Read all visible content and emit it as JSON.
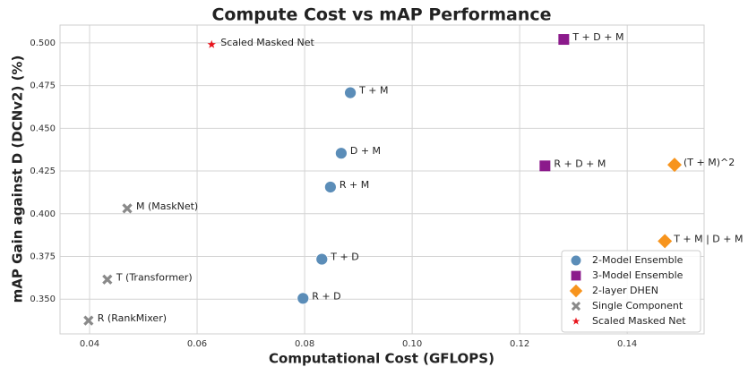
{
  "chart_data": {
    "type": "scatter",
    "title": "Compute Cost vs mAP Performance",
    "x_label": "Computational Cost (GFLOPS)",
    "y_label": "mAP Gain against D (DCNv2) (%)",
    "xlim": [
      0.0345,
      0.1543
    ],
    "ylim": [
      0.3297,
      0.5104
    ],
    "xticks": [
      0.04,
      0.06,
      0.08,
      {
        "value": 0.1,
        "label": "0.10"
      },
      0.12,
      0.14
    ],
    "yticks": [
      {
        "value": 0.35,
        "label": "0.350"
      },
      0.375,
      {
        "value": 0.4,
        "label": "0.400"
      },
      0.425,
      {
        "value": 0.45,
        "label": "0.450"
      },
      0.475,
      {
        "value": 0.5,
        "label": "0.500"
      }
    ],
    "grid": true,
    "legend": "lower right",
    "series": [
      {
        "name": "2-Model Ensemble",
        "color": "#5b8db8",
        "marker": "circle",
        "x": [
          0.0885,
          0.0868,
          0.0848,
          0.0832,
          0.0797
        ],
        "values": [
          0.4708,
          0.4354,
          0.4156,
          0.3734,
          0.3505
        ],
        "labels": [
          "T + M",
          "D + M",
          "R + M",
          "T + D",
          "R + D"
        ]
      },
      {
        "name": "3-Model Ensemble",
        "color": "#8b1a8b",
        "marker": "square",
        "x": [
          0.1282,
          0.1247
        ],
        "values": [
          0.502,
          0.428
        ],
        "labels": [
          "T + D + M",
          "R + D + M"
        ]
      },
      {
        "name": "2-layer DHEN",
        "color": "#f7941d",
        "marker": "diamond",
        "x": [
          0.1488,
          0.147
        ],
        "values": [
          0.4286,
          0.384
        ],
        "labels": [
          "(T + M)^2",
          "T + M | D + M"
        ]
      },
      {
        "name": "Single Component",
        "color": "#8a8a8a",
        "marker": "x",
        "x": [
          0.047,
          0.0433,
          0.0398
        ],
        "values": [
          0.4031,
          0.3615,
          0.3375
        ],
        "labels": [
          "M (MaskNet)",
          "T (Transformer)",
          "R (RankMixer)"
        ]
      },
      {
        "name": "Scaled Masked Net",
        "color": "#e8141c",
        "marker": "star",
        "x": [
          0.0627
        ],
        "values": [
          0.499
        ],
        "labels": [
          "Scaled Masked Net"
        ]
      }
    ]
  }
}
